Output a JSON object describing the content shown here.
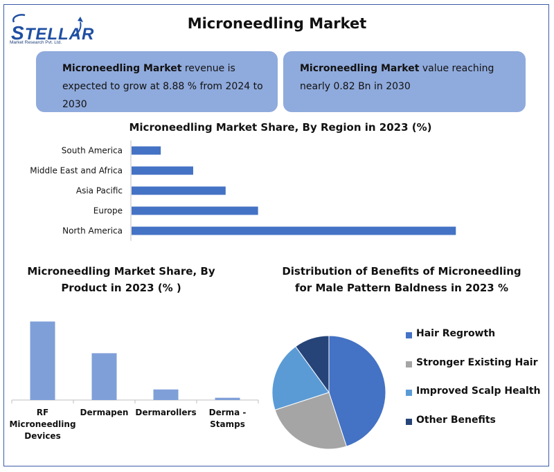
{
  "logo": {
    "word": "STELLAR",
    "sub": "Market Research Pvt. Ltd."
  },
  "title": "Microneedling Market",
  "callouts": [
    {
      "bold": "Microneedling Market",
      "text_lines": [
        " revenue is",
        "expected to grow at 8.88 % from 2024 to",
        "2030"
      ]
    },
    {
      "bold": "Microneedling Market",
      "text_lines": [
        " value reaching",
        "nearly 0.82 Bn in 2030"
      ]
    }
  ],
  "colors": {
    "bar": "#4472c4",
    "bar_light": "#7f9fd8",
    "callout": "#8faadc",
    "frame": "#3b5aa8"
  },
  "chart_data": [
    {
      "type": "bar",
      "orientation": "horizontal",
      "title": "Microneedling Market Share, By Region in 2023 (%)",
      "categories": [
        "South America",
        "Middle East and Africa",
        "Asia Pacific",
        "Europe",
        "North America"
      ],
      "values": [
        4.5,
        9.5,
        14.5,
        19.5,
        50
      ],
      "xlim": [
        0,
        52
      ]
    },
    {
      "type": "bar",
      "title_lines": [
        "Microneedling Market Share, By",
        "Product in 2023 (% )"
      ],
      "categories": [
        [
          "RF",
          "Microneedling",
          "Devices"
        ],
        [
          "Dermapen"
        ],
        [
          "Dermarollers"
        ],
        [
          "Derma -",
          "Stamps"
        ]
      ],
      "values": [
        52,
        31,
        7,
        1.5
      ],
      "ylim": [
        0,
        55
      ]
    },
    {
      "type": "pie",
      "title_lines": [
        "Distribution of Benefits of Microneedling",
        "for Male Pattern Baldness in 2023 %"
      ],
      "labels": [
        "Hair Regrowth",
        "Stronger Existing Hair",
        "Improved Scalp Health",
        "Other Benefits"
      ],
      "values": [
        45,
        25,
        20,
        10
      ],
      "colors": [
        "#4472c4",
        "#a5a5a5",
        "#5b9bd5",
        "#264478"
      ]
    }
  ]
}
